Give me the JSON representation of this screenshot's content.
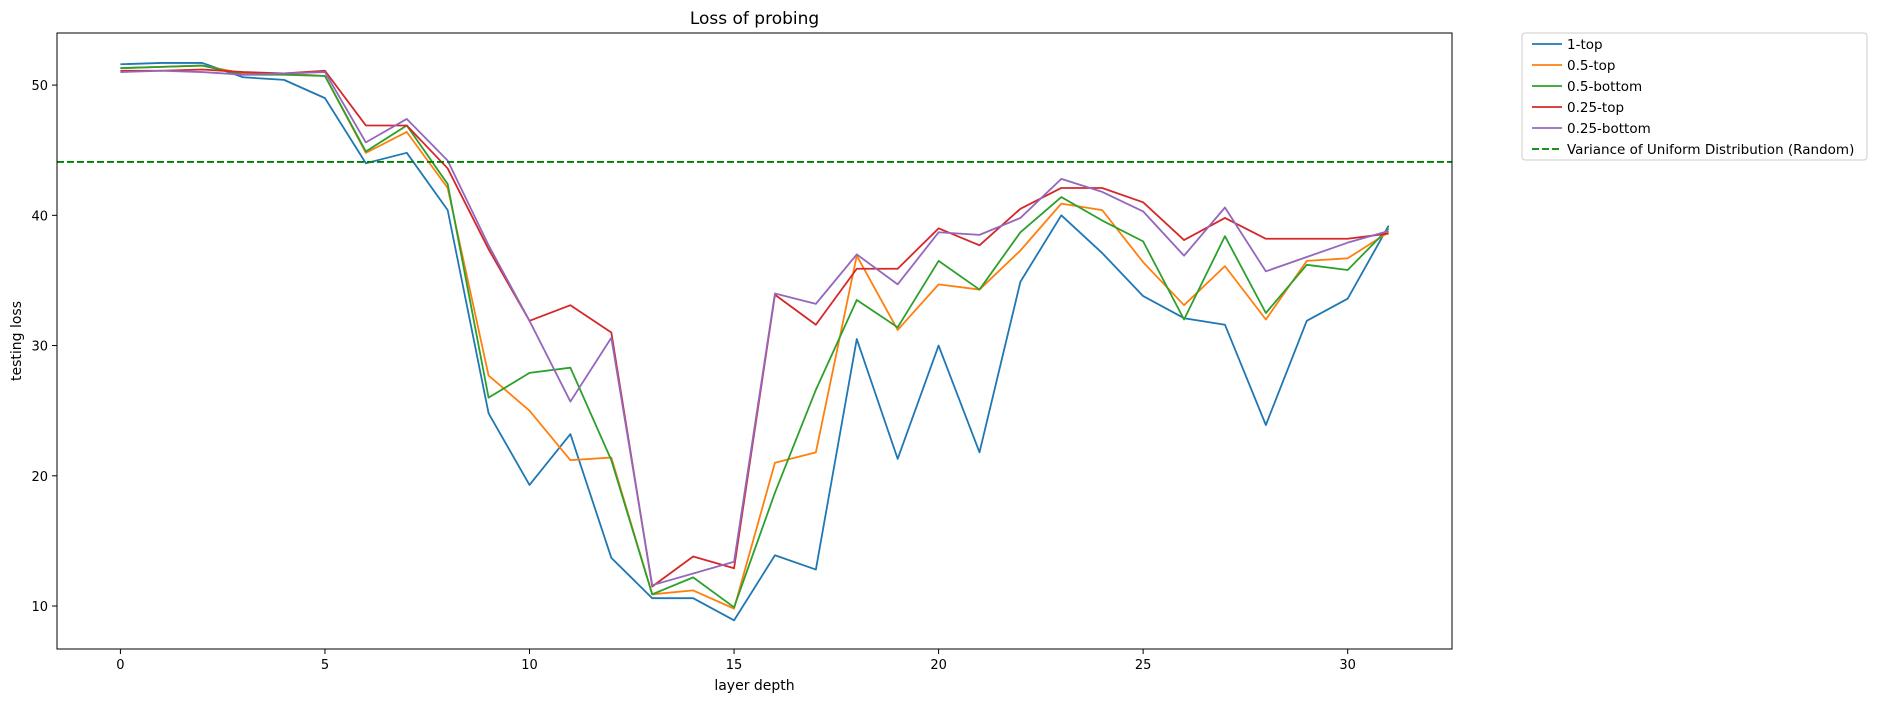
{
  "chart_data": {
    "type": "line",
    "title": "Loss of probing",
    "xlabel": "layer depth",
    "ylabel": "testing loss",
    "xlim": [
      -1.55,
      32.55
    ],
    "ylim": [
      6.7,
      54.0
    ],
    "xticks": [
      0,
      5,
      10,
      15,
      20,
      25,
      30
    ],
    "yticks": [
      10,
      20,
      30,
      40,
      50
    ],
    "grid": false,
    "legend_position": "outside-top-right",
    "x": [
      0,
      1,
      2,
      3,
      4,
      5,
      6,
      7,
      8,
      9,
      10,
      11,
      12,
      13,
      14,
      15,
      16,
      17,
      18,
      19,
      20,
      21,
      22,
      23,
      24,
      25,
      26,
      27,
      28,
      29,
      30,
      31
    ],
    "series": [
      {
        "name": "1-top",
        "color": "#1f77b4",
        "dash": "solid",
        "values": [
          51.6,
          51.7,
          51.7,
          50.6,
          50.4,
          49.0,
          44.0,
          44.8,
          40.4,
          24.8,
          19.3,
          23.2,
          13.7,
          10.6,
          10.6,
          8.9,
          13.9,
          12.8,
          30.5,
          21.3,
          30.0,
          21.8,
          34.9,
          40.0,
          37.1,
          33.8,
          32.1,
          31.6,
          23.9,
          31.9,
          33.6,
          39.2
        ]
      },
      {
        "name": "0.5-top",
        "color": "#ff7f0e",
        "dash": "solid",
        "values": [
          51.3,
          51.4,
          51.5,
          50.9,
          50.9,
          50.7,
          44.8,
          46.4,
          42.1,
          27.7,
          25.0,
          21.2,
          21.4,
          10.9,
          11.2,
          9.8,
          21.0,
          21.8,
          36.9,
          31.2,
          34.7,
          34.3,
          37.3,
          40.9,
          40.4,
          36.4,
          33.1,
          36.1,
          32.0,
          36.5,
          36.7,
          38.7
        ]
      },
      {
        "name": "0.5-bottom",
        "color": "#2ca02c",
        "dash": "solid",
        "values": [
          51.3,
          51.4,
          51.5,
          50.8,
          50.8,
          50.7,
          44.9,
          46.9,
          42.4,
          26.0,
          27.9,
          28.3,
          21.2,
          10.9,
          12.2,
          9.9,
          18.7,
          26.6,
          33.5,
          31.4,
          36.5,
          34.3,
          38.7,
          41.4,
          39.6,
          38.0,
          32.0,
          38.4,
          32.5,
          36.2,
          35.8,
          39.0
        ]
      },
      {
        "name": "0.25-top",
        "color": "#d62728",
        "dash": "solid",
        "values": [
          51.1,
          51.1,
          51.2,
          51.0,
          50.9,
          51.1,
          46.9,
          46.9,
          43.6,
          37.4,
          31.9,
          33.1,
          31.0,
          11.5,
          13.8,
          12.9,
          33.9,
          31.6,
          35.9,
          35.9,
          39.0,
          37.7,
          40.5,
          42.1,
          42.1,
          41.0,
          38.1,
          39.8,
          38.2,
          38.2,
          38.2,
          38.6
        ]
      },
      {
        "name": "0.25-bottom",
        "color": "#9467bd",
        "dash": "solid",
        "values": [
          51.0,
          51.1,
          51.0,
          50.8,
          50.9,
          51.0,
          45.6,
          47.4,
          44.2,
          37.7,
          31.9,
          25.7,
          30.6,
          11.6,
          12.5,
          13.4,
          34.0,
          33.2,
          37.0,
          34.7,
          38.7,
          38.5,
          39.8,
          42.8,
          41.8,
          40.3,
          36.9,
          40.6,
          35.7,
          36.8,
          37.9,
          38.8
        ]
      },
      {
        "name": "Variance of Uniform Distribution (Random)",
        "color": "#008000",
        "dash": "dashed",
        "constant": 44.1
      }
    ]
  }
}
